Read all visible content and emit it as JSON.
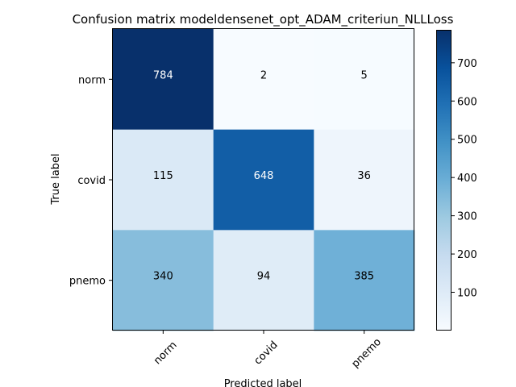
{
  "chart_data": {
    "type": "heatmap",
    "title": "Confusion matrix modeldensenet_opt_ADAM_criteriun_NLLLoss",
    "xlabel": "Predicted label",
    "ylabel": "True label",
    "x_categories": [
      "norm",
      "covid",
      "pnemo"
    ],
    "y_categories": [
      "norm",
      "covid",
      "pnemo"
    ],
    "values": [
      [
        784,
        2,
        5
      ],
      [
        115,
        648,
        36
      ],
      [
        340,
        94,
        385
      ]
    ],
    "colormap": "Blues",
    "colorbar": {
      "min": 2,
      "max": 784,
      "ticks": [
        100,
        200,
        300,
        400,
        500,
        600,
        700
      ]
    },
    "colors": {
      "blues": [
        "#f7fbff",
        "#deebf7",
        "#c6dbef",
        "#9ecae1",
        "#6baed6",
        "#4292c6",
        "#2171b5",
        "#08519c",
        "#08306b"
      ]
    }
  }
}
